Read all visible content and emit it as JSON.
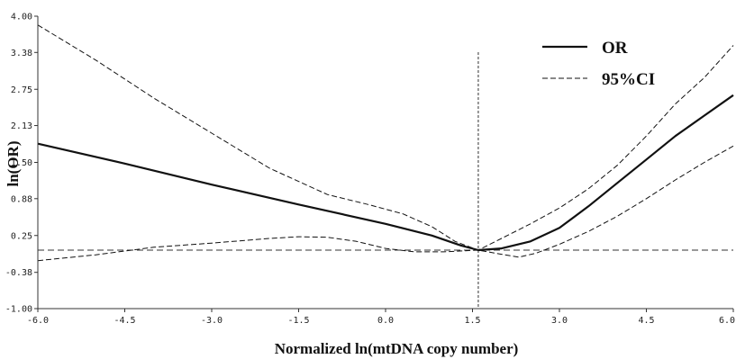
{
  "chart_data": {
    "type": "line",
    "title": "",
    "xlabel": "Normalized ln(mtDNA copy number)",
    "ylabel": "ln(OR)",
    "xlim": [
      -6.0,
      6.0
    ],
    "ylim": [
      -1.0,
      4.0
    ],
    "x_tick_labels": [
      {
        "value": -6.0,
        "label": "-6.0"
      },
      {
        "value": -4.5,
        "label": "-4.5"
      },
      {
        "value": -3.0,
        "label": "-3.0"
      },
      {
        "value": -1.5,
        "label": "-1.5"
      },
      {
        "value": 0.0,
        "label": "0.0"
      },
      {
        "value": 1.5,
        "label": "1.5"
      },
      {
        "value": 3.0,
        "label": "3.0"
      },
      {
        "value": 4.5,
        "label": "4.5"
      },
      {
        "value": 6.0,
        "label": "6.0"
      }
    ],
    "y_tick_labels": [
      {
        "value": 4.0,
        "label": "4.00"
      },
      {
        "value": 3.38,
        "label": "3.38"
      },
      {
        "value": 2.75,
        "label": "2.75"
      },
      {
        "value": 2.13,
        "label": "2.13"
      },
      {
        "value": 1.5,
        "label": "1.50"
      },
      {
        "value": 0.88,
        "label": "0.88"
      },
      {
        "value": 0.25,
        "label": "0.25"
      },
      {
        "value": -0.38,
        "label": "-0.38"
      },
      {
        "value": -1.0,
        "label": "-1.00"
      }
    ],
    "reference_lines": {
      "horizontal_y": 0.0,
      "vertical_x": 1.6
    },
    "legend": {
      "position": "top-right"
    },
    "series": [
      {
        "name": "OR",
        "style": "solid",
        "x": [
          -6.0,
          -4.5,
          -3.0,
          -1.5,
          0.0,
          0.8,
          1.3,
          1.6,
          2.0,
          2.5,
          3.0,
          3.5,
          4.0,
          4.5,
          5.0,
          5.5,
          6.0
        ],
        "y": [
          1.82,
          1.48,
          1.12,
          0.78,
          0.45,
          0.25,
          0.08,
          0.0,
          0.03,
          0.15,
          0.38,
          0.75,
          1.15,
          1.55,
          1.95,
          2.3,
          2.65
        ]
      },
      {
        "name": "95%CI",
        "style": "dashed",
        "x": [
          -6.0,
          -5.0,
          -4.0,
          -3.0,
          -2.0,
          -1.0,
          -0.3,
          0.3,
          0.8,
          1.2,
          1.6,
          2.0,
          2.5,
          3.0,
          3.5,
          4.0,
          4.5,
          5.0,
          5.5,
          6.0
        ],
        "y": [
          3.85,
          3.25,
          2.6,
          2.0,
          1.4,
          0.95,
          0.78,
          0.62,
          0.4,
          0.15,
          0.0,
          0.2,
          0.45,
          0.72,
          1.05,
          1.45,
          1.95,
          2.5,
          2.95,
          3.5
        ]
      },
      {
        "name": "",
        "style": "dashed",
        "x": [
          -6.0,
          -5.0,
          -4.0,
          -3.0,
          -2.0,
          -1.5,
          -1.0,
          -0.5,
          0.0,
          0.5,
          1.0,
          1.6,
          2.0,
          2.3,
          2.6,
          3.0,
          3.5,
          4.0,
          4.5,
          5.0,
          5.5,
          6.0
        ],
        "y": [
          -0.18,
          -0.08,
          0.05,
          0.12,
          0.2,
          0.23,
          0.22,
          0.15,
          0.03,
          -0.03,
          -0.03,
          0.0,
          -0.07,
          -0.12,
          -0.05,
          0.1,
          0.32,
          0.58,
          0.88,
          1.2,
          1.5,
          1.78
        ]
      }
    ]
  }
}
